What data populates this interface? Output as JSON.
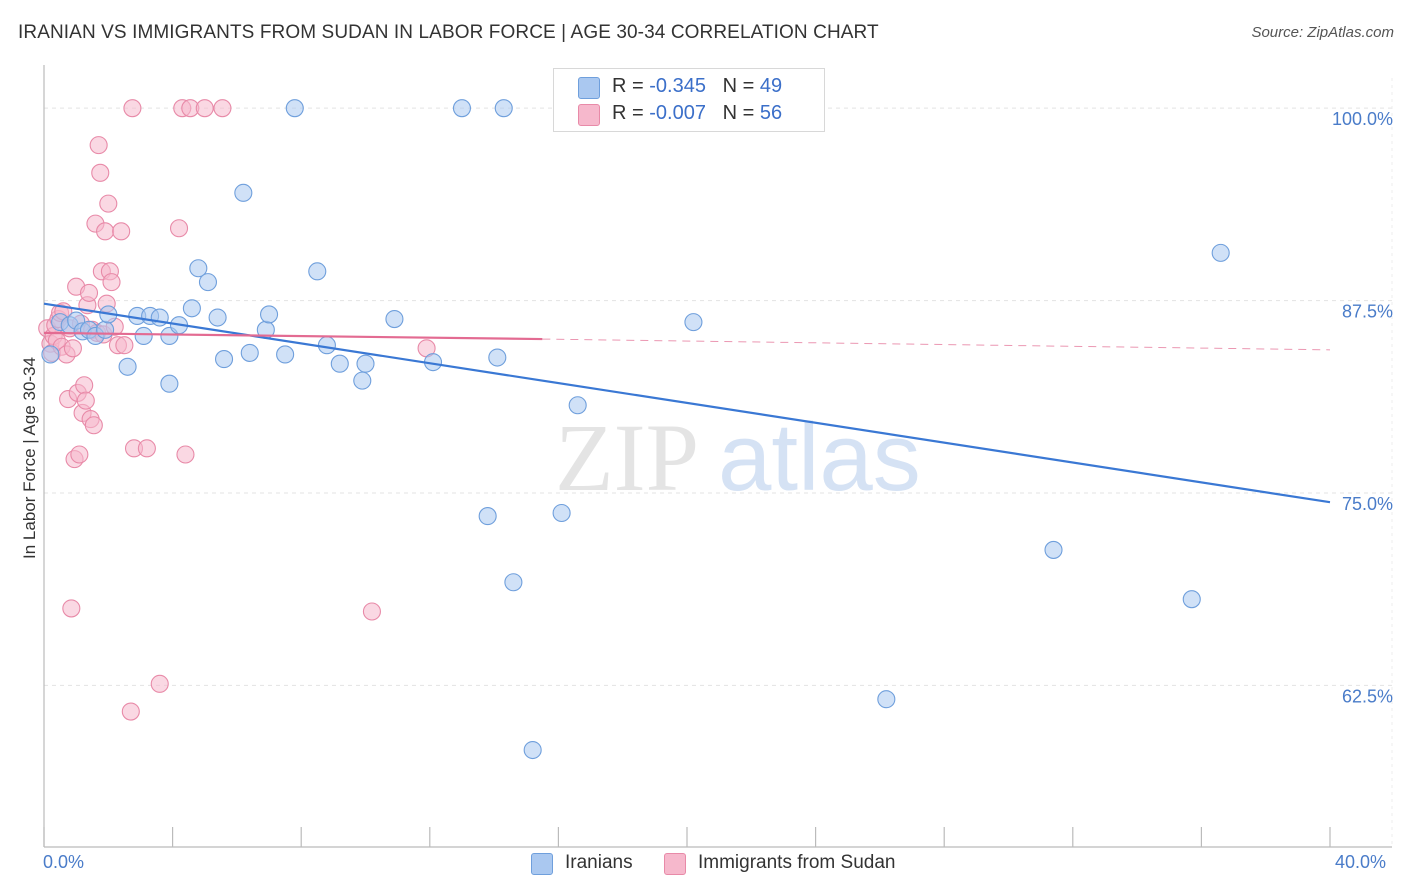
{
  "header": {
    "title": "IRANIAN VS IMMIGRANTS FROM SUDAN IN LABOR FORCE | AGE 30-34 CORRELATION CHART",
    "source": "Source: ZipAtlas.com"
  },
  "watermark": {
    "zip": "ZIP",
    "atlas": "atlas"
  },
  "stats": [
    {
      "r_label": "R =",
      "r_value": "-0.345",
      "n_label": "N =",
      "n_value": "49"
    },
    {
      "r_label": "R =",
      "r_value": "-0.007",
      "n_label": "N =",
      "n_value": "56"
    }
  ],
  "colors": {
    "blue_fill": "#aac8f0",
    "blue_stroke": "#6f9fdc",
    "blue_line": "#3a78d4",
    "pink_fill": "#f6b8cc",
    "pink_stroke": "#e88aa8",
    "pink_line": "#e36b92",
    "tick_text": "#4a7cc9",
    "grid": "#e3e3e3"
  },
  "chart_data": {
    "type": "scatter",
    "title": "IRANIAN VS IMMIGRANTS FROM SUDAN IN LABOR FORCE | AGE 30-34 CORRELATION CHART",
    "xlabel": "",
    "ylabel": "In Labor Force | Age 30-34",
    "xlim": [
      0,
      40
    ],
    "ylim": [
      52,
      101
    ],
    "x_tick_labels": [
      "0.0%",
      "40.0%"
    ],
    "y_ticks": [
      62.5,
      75.0,
      87.5,
      100.0
    ],
    "y_tick_labels": [
      "62.5%",
      "75.0%",
      "87.5%",
      "100.0%"
    ],
    "grid": true,
    "legend_position": "bottom-center",
    "series": [
      {
        "name": "Iranians",
        "color": "#aac8f0",
        "trend": {
          "x": [
            0,
            40
          ],
          "y": [
            87.3,
            74.4
          ],
          "style": "solid"
        },
        "points": [
          [
            0.2,
            84.0
          ],
          [
            0.5,
            86.1
          ],
          [
            0.8,
            85.9
          ],
          [
            1.0,
            86.2
          ],
          [
            1.2,
            85.5
          ],
          [
            1.4,
            85.6
          ],
          [
            1.6,
            85.2
          ],
          [
            1.9,
            85.6
          ],
          [
            2.0,
            86.6
          ],
          [
            2.6,
            83.2
          ],
          [
            2.9,
            86.5
          ],
          [
            3.1,
            85.2
          ],
          [
            3.3,
            86.5
          ],
          [
            3.6,
            86.4
          ],
          [
            3.9,
            82.1
          ],
          [
            3.9,
            85.2
          ],
          [
            4.2,
            85.9
          ],
          [
            4.6,
            87.0
          ],
          [
            4.8,
            89.6
          ],
          [
            5.1,
            88.7
          ],
          [
            5.4,
            86.4
          ],
          [
            5.6,
            83.7
          ],
          [
            6.2,
            94.5
          ],
          [
            6.4,
            84.1
          ],
          [
            6.9,
            85.6
          ],
          [
            7.0,
            86.6
          ],
          [
            7.5,
            84.0
          ],
          [
            7.8,
            100.0
          ],
          [
            8.5,
            89.4
          ],
          [
            8.8,
            84.6
          ],
          [
            9.2,
            83.4
          ],
          [
            9.9,
            82.3
          ],
          [
            10.0,
            83.4
          ],
          [
            10.9,
            86.3
          ],
          [
            12.1,
            83.5
          ],
          [
            13.0,
            100.0
          ],
          [
            13.8,
            73.5
          ],
          [
            14.1,
            83.8
          ],
          [
            14.3,
            100.0
          ],
          [
            14.6,
            69.2
          ],
          [
            15.2,
            58.3
          ],
          [
            16.1,
            73.7
          ],
          [
            16.6,
            80.7
          ],
          [
            18.9,
            100.0
          ],
          [
            20.2,
            86.1
          ],
          [
            26.2,
            61.6
          ],
          [
            31.4,
            71.3
          ],
          [
            35.7,
            68.1
          ],
          [
            36.6,
            90.6
          ]
        ]
      },
      {
        "name": "Immigrants from Sudan",
        "color": "#f6b8cc",
        "trend": {
          "x": [
            0,
            15.5,
            40
          ],
          "y": [
            85.4,
            85.0,
            84.3
          ],
          "style": "solid-then-dashed"
        },
        "points": [
          [
            0.1,
            85.7
          ],
          [
            0.2,
            84.7
          ],
          [
            0.25,
            84.1
          ],
          [
            0.3,
            85.2
          ],
          [
            0.35,
            85.9
          ],
          [
            0.4,
            84.9
          ],
          [
            0.45,
            86.3
          ],
          [
            0.5,
            86.7
          ],
          [
            0.55,
            84.5
          ],
          [
            0.6,
            86.8
          ],
          [
            0.7,
            84.0
          ],
          [
            0.75,
            81.1
          ],
          [
            0.8,
            85.7
          ],
          [
            0.85,
            67.5
          ],
          [
            0.9,
            84.4
          ],
          [
            0.95,
            77.2
          ],
          [
            1.0,
            88.4
          ],
          [
            1.05,
            81.5
          ],
          [
            1.1,
            77.5
          ],
          [
            1.15,
            86.0
          ],
          [
            1.2,
            80.2
          ],
          [
            1.25,
            82.0
          ],
          [
            1.3,
            81.0
          ],
          [
            1.35,
            87.2
          ],
          [
            1.4,
            88.0
          ],
          [
            1.45,
            79.8
          ],
          [
            1.5,
            85.6
          ],
          [
            1.55,
            79.4
          ],
          [
            1.6,
            92.5
          ],
          [
            1.65,
            85.4
          ],
          [
            1.7,
            97.6
          ],
          [
            1.75,
            95.8
          ],
          [
            1.8,
            89.4
          ],
          [
            1.85,
            85.3
          ],
          [
            1.9,
            92.0
          ],
          [
            1.95,
            87.3
          ],
          [
            2.0,
            93.8
          ],
          [
            2.05,
            89.4
          ],
          [
            2.1,
            88.7
          ],
          [
            2.2,
            85.8
          ],
          [
            2.3,
            84.6
          ],
          [
            2.4,
            92.0
          ],
          [
            2.5,
            84.6
          ],
          [
            2.8,
            77.9
          ],
          [
            2.7,
            60.8
          ],
          [
            2.75,
            100.0
          ],
          [
            3.2,
            77.9
          ],
          [
            3.6,
            62.6
          ],
          [
            4.2,
            92.2
          ],
          [
            4.4,
            77.5
          ],
          [
            4.3,
            100.0
          ],
          [
            4.55,
            100.0
          ],
          [
            5.0,
            100.0
          ],
          [
            5.55,
            100.0
          ],
          [
            10.2,
            67.3
          ],
          [
            11.9,
            84.4
          ]
        ]
      }
    ]
  }
}
